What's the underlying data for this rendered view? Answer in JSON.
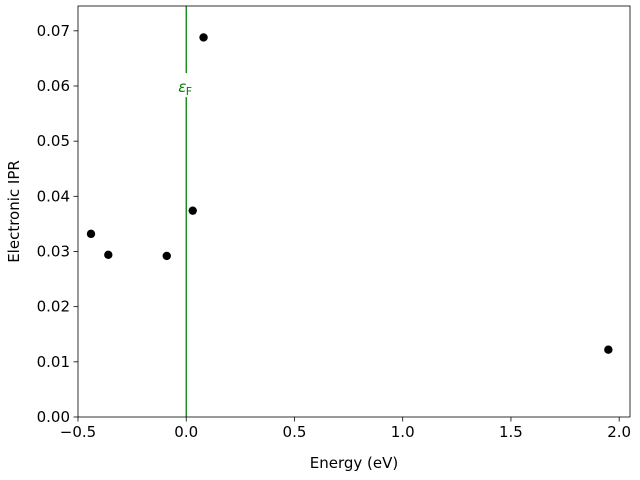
{
  "chart_data": {
    "type": "scatter",
    "title": "",
    "xlabel": "Energy (eV)",
    "ylabel": "Electronic IPR",
    "xlim": [
      -0.5,
      2.05
    ],
    "ylim": [
      0.0,
      0.0745
    ],
    "grid": false,
    "x_ticks": [
      -0.5,
      0.0,
      0.5,
      1.0,
      1.5,
      2.0
    ],
    "x_tick_labels": [
      "−0.5",
      "0.0",
      "0.5",
      "1.0",
      "1.5",
      "2.0"
    ],
    "y_ticks": [
      0.0,
      0.01,
      0.02,
      0.03,
      0.04,
      0.05,
      0.06,
      0.07
    ],
    "y_tick_labels": [
      "0.00",
      "0.01",
      "0.02",
      "0.03",
      "0.04",
      "0.05",
      "0.06",
      "0.07"
    ],
    "series": [
      {
        "name": "IPR",
        "color": "#000000",
        "points": [
          {
            "x": -0.44,
            "y": 0.0332
          },
          {
            "x": -0.36,
            "y": 0.0294
          },
          {
            "x": -0.09,
            "y": 0.0292
          },
          {
            "x": 0.03,
            "y": 0.0374
          },
          {
            "x": 0.08,
            "y": 0.0688
          },
          {
            "x": 1.95,
            "y": 0.0122
          }
        ]
      }
    ],
    "annotations": [
      {
        "type": "vline",
        "x": 0.0,
        "color": "#008000",
        "label_main": "ε",
        "label_sub": "F",
        "label_y": 0.0598
      }
    ]
  }
}
